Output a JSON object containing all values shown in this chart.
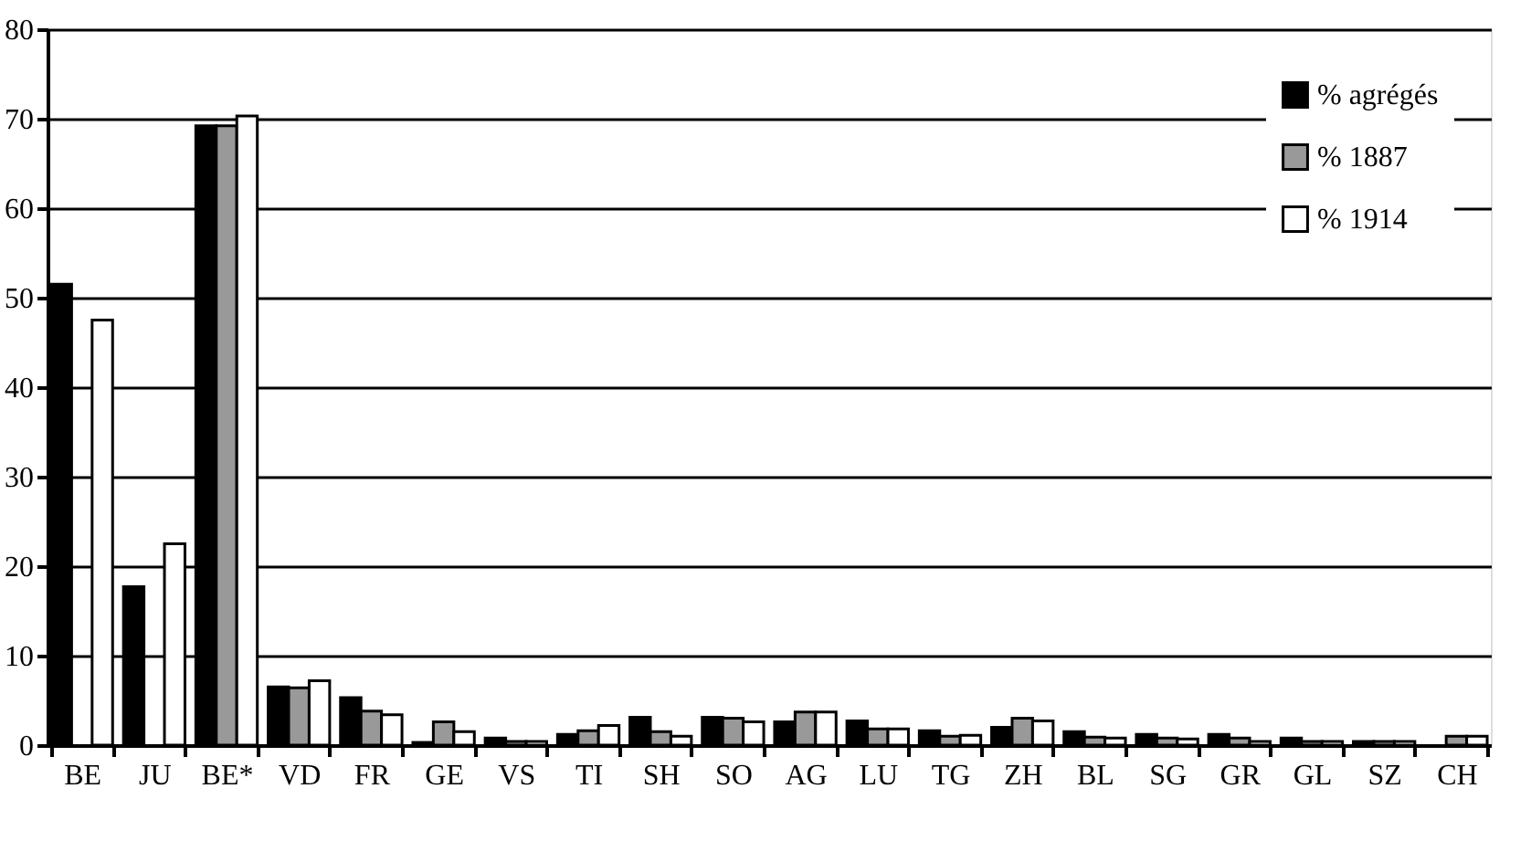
{
  "chart_data": {
    "type": "bar",
    "categories": [
      "BE",
      "JU",
      "BE*",
      "VD",
      "FR",
      "GE",
      "VS",
      "TI",
      "SH",
      "SO",
      "AG",
      "LU",
      "TG",
      "ZH",
      "BL",
      "SG",
      "GR",
      "GL",
      "SZ",
      "CH"
    ],
    "series": [
      {
        "name": "% agrégés",
        "color": "#000000",
        "values": [
          51.5,
          17.7,
          69.2,
          6.5,
          5.3,
          0.3,
          0.8,
          1.2,
          3.1,
          3.1,
          2.6,
          2.7,
          1.6,
          2.0,
          1.5,
          1.2,
          1.2,
          0.8,
          0.4,
          null
        ]
      },
      {
        "name": "% 1887",
        "color": "#999999",
        "values": [
          null,
          null,
          69.2,
          6.4,
          3.8,
          2.6,
          0.4,
          1.6,
          1.5,
          3.0,
          3.7,
          1.8,
          1.0,
          3.0,
          0.9,
          0.8,
          0.8,
          0.4,
          0.4,
          1.0
        ]
      },
      {
        "name": "% 1914",
        "color": "#ffffff",
        "values": [
          47.5,
          22.5,
          70.3,
          7.2,
          3.4,
          1.5,
          0.4,
          2.2,
          1.0,
          2.6,
          3.7,
          1.8,
          1.1,
          2.7,
          0.8,
          0.7,
          0.4,
          0.4,
          0.4,
          1.0
        ]
      }
    ],
    "ylim": [
      0,
      80
    ],
    "yticks": [
      0,
      10,
      20,
      30,
      40,
      50,
      60,
      70,
      80
    ],
    "grid": "y",
    "legend": "top right"
  }
}
